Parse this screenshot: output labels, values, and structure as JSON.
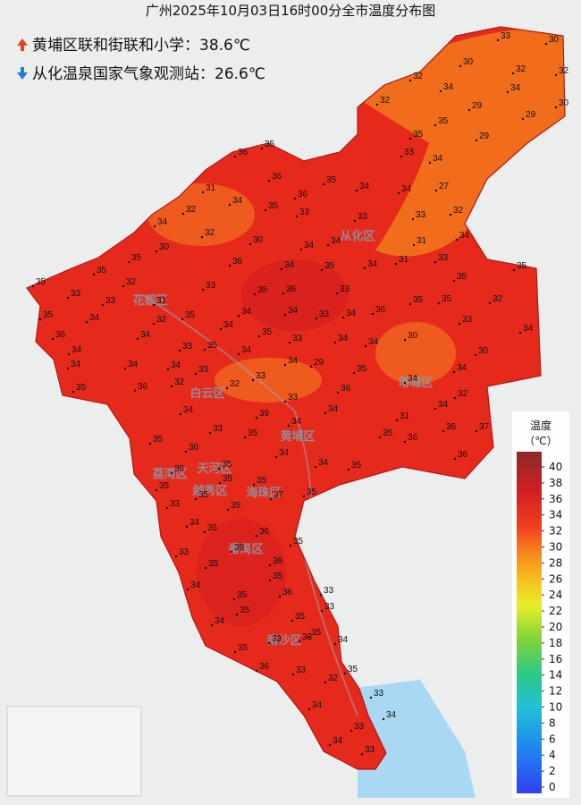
{
  "title": "广州2025年10月03日16时00分全市温度分布图",
  "max_station": "黄埔区联和街联和小学：38.6℃",
  "min_station": "从化温泉国家气象观测站：26.6℃",
  "legend": {
    "title": "温度",
    "unit": "（℃）",
    "lim": [
      0,
      40
    ],
    "ticks": [
      0,
      2,
      4,
      6,
      8,
      10,
      12,
      14,
      16,
      18,
      20,
      22,
      24,
      26,
      28,
      30,
      32,
      34,
      36,
      38,
      40
    ]
  },
  "districts": [
    "从化区",
    "花都区",
    "白云区",
    "增城区",
    "黄埔区",
    "天河区",
    "荔湾区",
    "越秀区",
    "海珠区",
    "番禺区",
    "南沙区"
  ],
  "stations": [
    33,
    30,
    30,
    32,
    32,
    32,
    34,
    34,
    32,
    29,
    29,
    30,
    35,
    35,
    29,
    35,
    36,
    33,
    34,
    36,
    31,
    35,
    34,
    34,
    27,
    34,
    36,
    35,
    32,
    34,
    33,
    33,
    33,
    32,
    32,
    30,
    30,
    34,
    34,
    31,
    34,
    35,
    36,
    34,
    35,
    34,
    31,
    33,
    35,
    35,
    35,
    32,
    33,
    33,
    35,
    36,
    33,
    35,
    33,
    31,
    35,
    34,
    34,
    33,
    34,
    36,
    35,
    35,
    32,
    35,
    34,
    32,
    34,
    35,
    33,
    34,
    33,
    36,
    34,
    33,
    35,
    34,
    34,
    30,
    34,
    34,
    34,
    34,
    33,
    33,
    34,
    29,
    35,
    30,
    34,
    34,
    35,
    36,
    32,
    32,
    33,
    36,
    34,
    32,
    34,
    39,
    34,
    31,
    34,
    33,
    34,
    35,
    35,
    35,
    36,
    36,
    37,
    30,
    34,
    34,
    35,
    35,
    36,
    36,
    35,
    35,
    35,
    35,
    33,
    35,
    35,
    37,
    34,
    35,
    36,
    35,
    33,
    33,
    35,
    36,
    34,
    35,
    35,
    36,
    33,
    35,
    33,
    34,
    35,
    33,
    35,
    34,
    35,
    33,
    35,
    36,
    33,
    32,
    33,
    34,
    34,
    33,
    34,
    33
  ]
}
